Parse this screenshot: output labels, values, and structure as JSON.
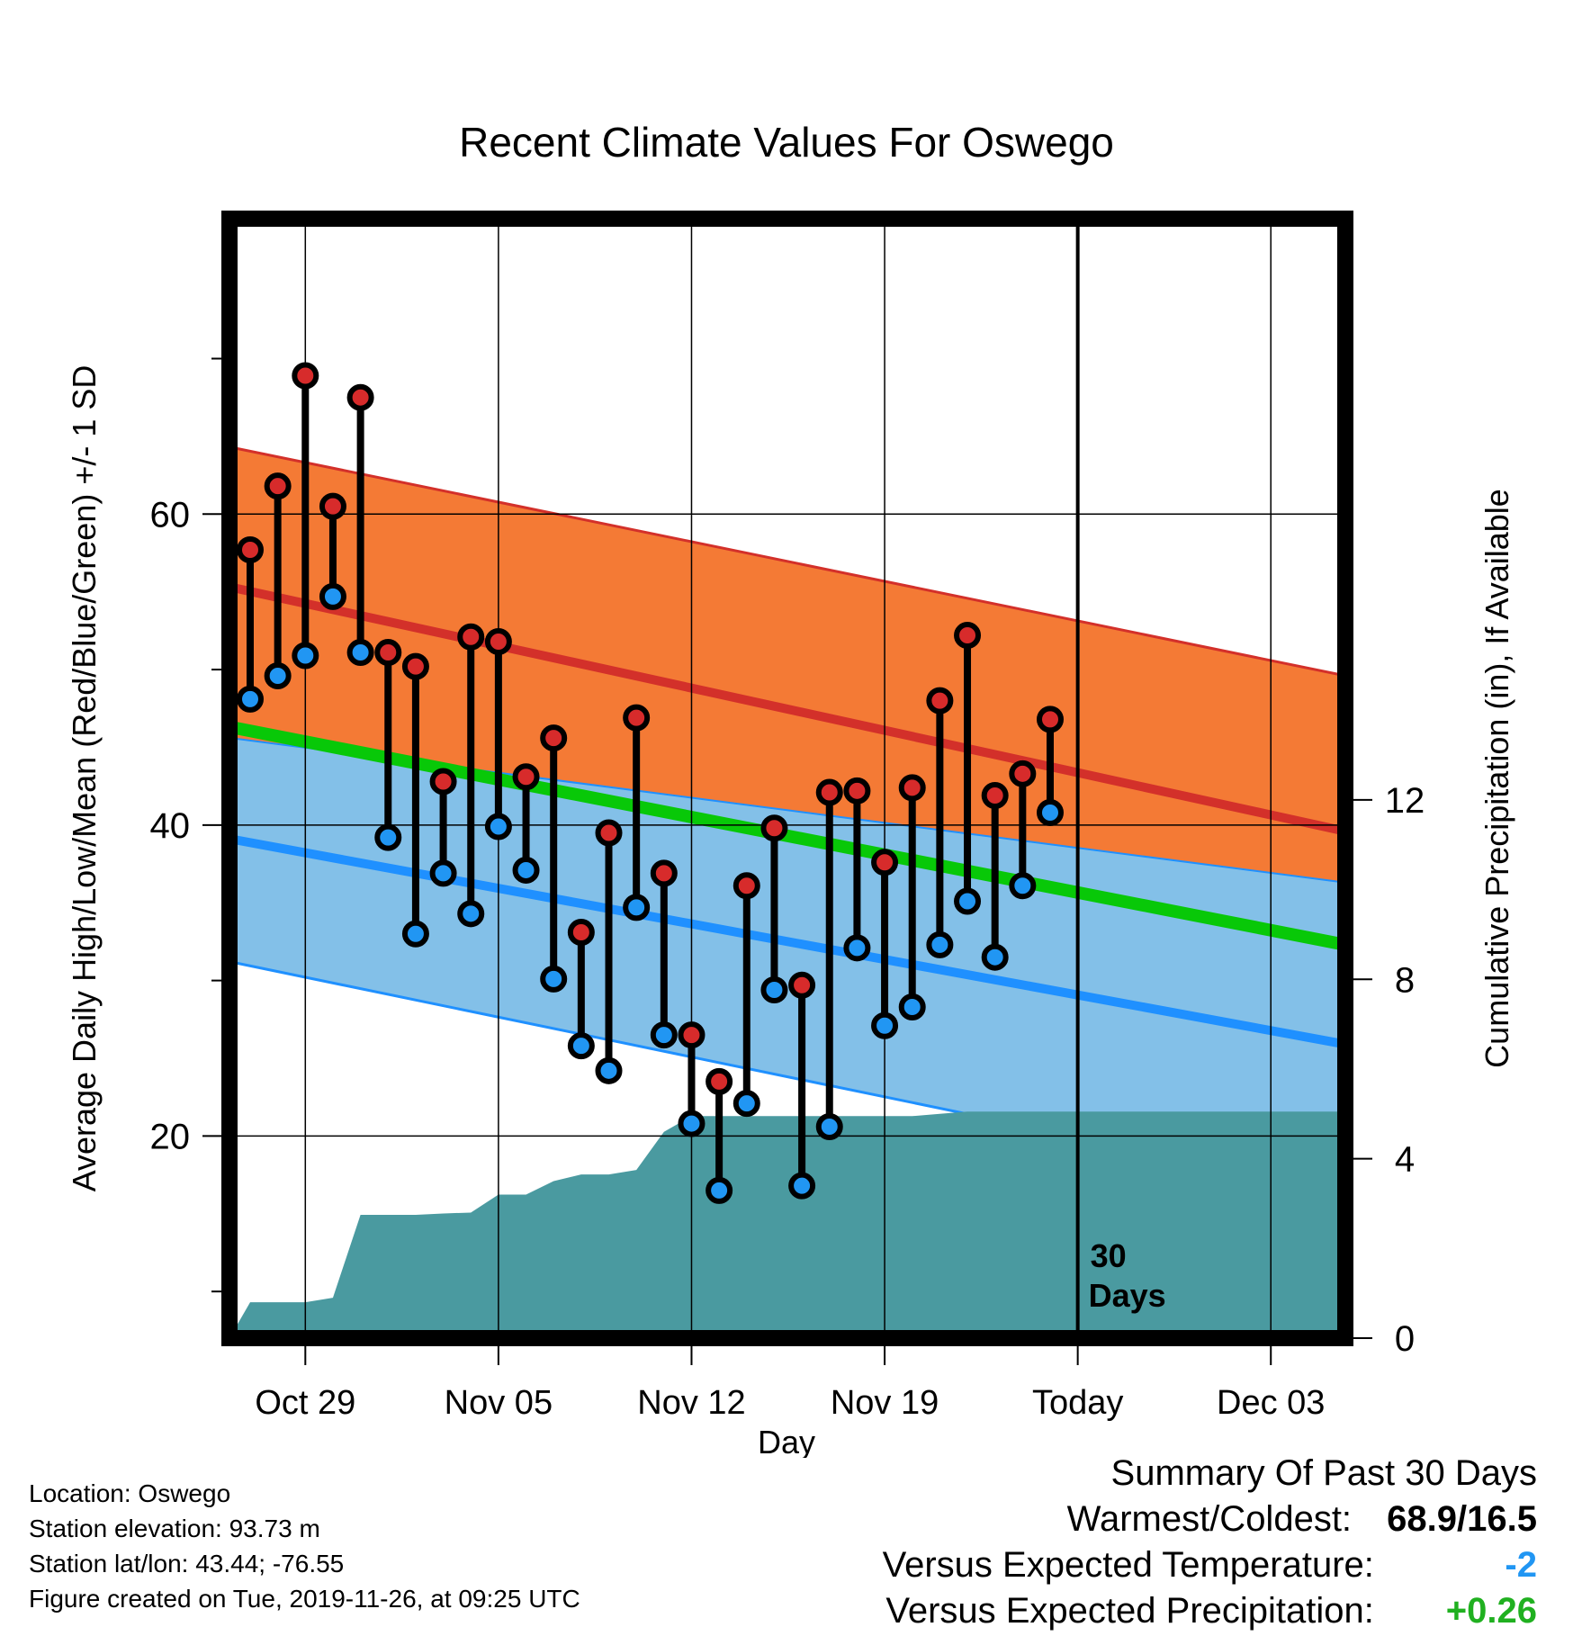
{
  "chart_data": {
    "type": "line",
    "title": "Recent Climate Values For Oswego",
    "xlabel": "Day",
    "ylabel": "Average Daily High/Low/Mean (Red/Blue/Green) +/- 1 SD",
    "y2label": "Cumulative Precipitation (in), If Available",
    "ylim": [
      7,
      79
    ],
    "y_ticks": [
      20,
      40,
      60
    ],
    "y2lim": [
      0,
      24.96
    ],
    "y2_ticks": [
      0,
      4,
      8,
      12
    ],
    "x_tick_labels": [
      "Oct 29",
      "Nov 05",
      "Nov 12",
      "Nov 19",
      "Today",
      "Dec 03"
    ],
    "x_tick_days": [
      2,
      9,
      16,
      23,
      30,
      37
    ],
    "xlim": [
      -0.75,
      39.7
    ],
    "grid": true,
    "today_marker": {
      "day": 30,
      "label_line1": "30",
      "label_line2": "Days"
    },
    "normals": {
      "days": [
        -0.7,
        39.7
      ],
      "high_mean": [
        55.3,
        39.6
      ],
      "high_upper": [
        64.3,
        49.6
      ],
      "high_lower": [
        45.6,
        36.3
      ],
      "low_mean": [
        39.1,
        25.9
      ],
      "low_upper": [
        45.6,
        36.3
      ],
      "low_lower": [
        31.2,
        16.4
      ],
      "mean": [
        46.3,
        32.3
      ]
    },
    "observed": {
      "days": [
        0,
        1,
        2,
        3,
        4,
        5,
        6,
        7,
        8,
        9,
        10,
        11,
        12,
        13,
        14,
        15,
        16,
        17,
        18,
        19,
        20,
        21,
        22,
        23,
        24,
        25,
        26,
        27,
        28,
        29
      ],
      "highs": [
        57.7,
        61.8,
        68.9,
        60.5,
        67.5,
        51.1,
        50.2,
        42.8,
        52.1,
        51.8,
        43.1,
        45.6,
        33.1,
        39.5,
        46.9,
        36.9,
        26.5,
        23.5,
        36.1,
        39.8,
        29.7,
        42.1,
        42.2,
        37.6,
        42.4,
        48.0,
        52.2,
        41.9,
        43.3,
        46.8
      ],
      "lows": [
        48.1,
        49.6,
        50.9,
        54.7,
        51.1,
        39.2,
        33.0,
        36.9,
        34.3,
        39.9,
        37.1,
        30.1,
        25.8,
        24.2,
        34.7,
        26.5,
        20.8,
        16.5,
        22.1,
        29.4,
        16.8,
        20.6,
        32.1,
        27.1,
        28.3,
        32.3,
        35.1,
        31.5,
        36.1,
        40.8
      ]
    },
    "precip": {
      "days": [
        -0.75,
        0,
        1,
        2,
        3,
        4,
        5,
        6,
        7,
        8,
        9,
        10,
        11,
        12,
        13,
        14,
        15,
        16,
        17,
        18,
        19,
        20,
        21,
        22,
        23,
        24,
        25,
        26,
        27,
        28,
        29,
        39.7
      ],
      "cumulative": [
        0,
        0.8,
        0.8,
        0.8,
        0.9,
        2.75,
        2.75,
        2.75,
        2.78,
        2.8,
        3.2,
        3.2,
        3.5,
        3.65,
        3.65,
        3.75,
        4.6,
        4.95,
        4.95,
        4.95,
        4.95,
        4.95,
        4.95,
        4.95,
        4.95,
        4.95,
        5.0,
        5.05,
        5.05,
        5.05,
        5.05,
        5.05
      ]
    },
    "colors": {
      "high_band": "#f47a35",
      "high_line": "#d3302a",
      "low_band": "#83c0e8",
      "low_line": "#1f90ff",
      "overlap_band": "#931a1c",
      "mean_line": "#08c808",
      "precip_fill": "#4a9aa0",
      "high_dot": "#d72b2b",
      "low_dot": "#2196f3"
    }
  },
  "footer": {
    "location": "Location: Oswego",
    "elevation": "Station elevation: 93.73 m",
    "latlon": "Station lat/lon: 43.44; -76.55",
    "created": "Figure created on Tue, 2019-11-26, at 09:25 UTC"
  },
  "summary": {
    "title": "Summary Of Past 30 Days",
    "warm_cold_label": "Warmest/Coldest:",
    "warm_cold_value": "68.9/16.5",
    "temp_label": "Versus Expected Temperature:",
    "temp_value": "-2",
    "temp_color": "#2196f3",
    "precip_label": "Versus Expected Precipitation:",
    "precip_value": "+0.26",
    "precip_color": "#20b020"
  }
}
